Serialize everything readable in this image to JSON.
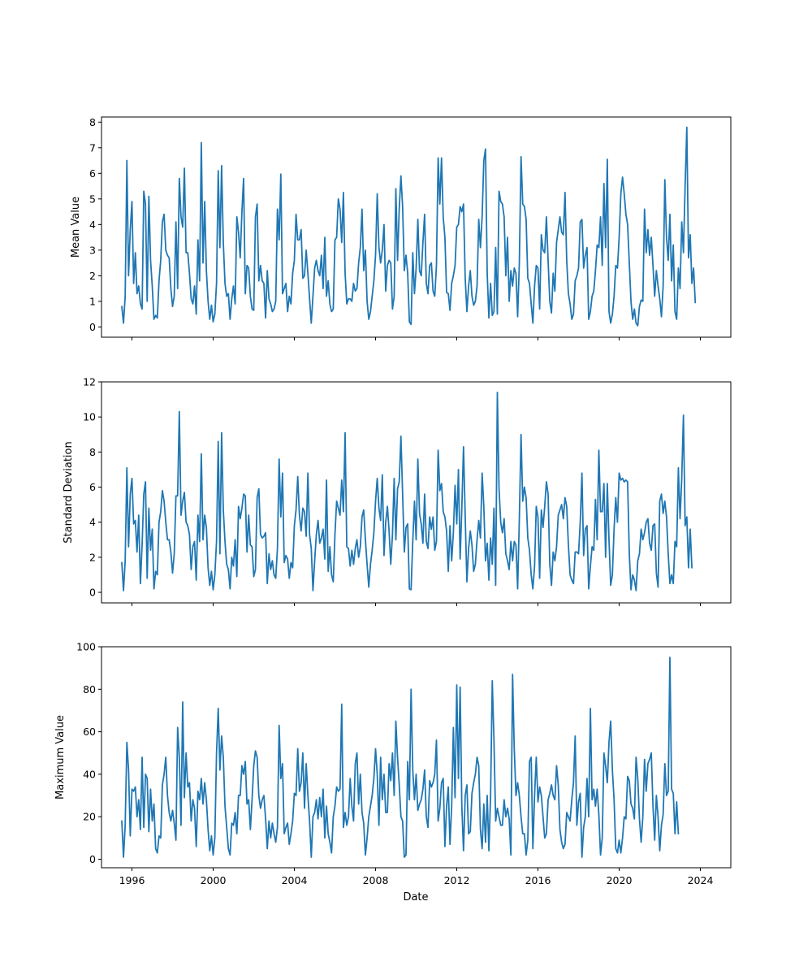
{
  "figure": {
    "xlabel": "Date",
    "line_color": "#1f77b4"
  },
  "chart_data": [
    {
      "type": "line",
      "ylabel": "Mean Value",
      "x_range": [
        "1995-07",
        "2024-06"
      ],
      "xlim": [
        "1994-07",
        "2025-07"
      ],
      "ylim": [
        -0.4,
        8.2
      ],
      "yticks": [
        0,
        1,
        2,
        3,
        4,
        5,
        6,
        7,
        8
      ],
      "xticks": [
        "1996",
        "2000",
        "2004",
        "2008",
        "2012",
        "2016",
        "2020",
        "2024"
      ],
      "x_tick_labels_visible": false,
      "grid": false,
      "series": [
        {
          "values": [
            0.8,
            0.15,
            1.2,
            6.5,
            2.0,
            3.8,
            4.9,
            1.7,
            2.9,
            1.3,
            1.6,
            0.9,
            0.7,
            5.3,
            4.8,
            1.0,
            5.1,
            2.6,
            1.6,
            0.3,
            0.45,
            0.35,
            1.8,
            2.6,
            4.1,
            4.4,
            3.0,
            2.8,
            2.7,
            1.5,
            0.8,
            1.2,
            4.1,
            1.5,
            5.8,
            4.3,
            3.9,
            6.2,
            2.9,
            2.9,
            2.1,
            1.1,
            0.9,
            1.6,
            0.5,
            3.4,
            1.8,
            7.2,
            2.5,
            4.9,
            2.2,
            1.0,
            0.3,
            0.85,
            0.2,
            0.5,
            1.7,
            6.1,
            3.1,
            6.3,
            3.3,
            1.7,
            1.2,
            1.3,
            0.3,
            1.1,
            1.6,
            0.9,
            4.3,
            3.7,
            2.7,
            4.5,
            5.8,
            1.3,
            2.4,
            2.3,
            1.2,
            0.7,
            0.65,
            4.3,
            4.8,
            1.8,
            2.4,
            1.8,
            1.7,
            0.35,
            2.2,
            1.1,
            0.9,
            0.6,
            0.7,
            1.0,
            4.6,
            3.4,
            5.97,
            1.3,
            1.5,
            1.7,
            0.6,
            1.2,
            0.9,
            2.1,
            2.6,
            4.4,
            3.4,
            3.4,
            3.8,
            1.9,
            2.0,
            3.0,
            2.1,
            1.1,
            0.15,
            1.2,
            2.3,
            2.6,
            2.2,
            2.0,
            2.8,
            1.5,
            3.5,
            1.2,
            1.8,
            0.9,
            0.6,
            0.7,
            3.4,
            3.5,
            5.0,
            4.6,
            3.3,
            5.25,
            2.1,
            0.9,
            1.1,
            1.1,
            1.0,
            1.7,
            1.4,
            1.5,
            2.5,
            3.1,
            4.6,
            2.2,
            3.0,
            1.0,
            0.3,
            0.6,
            1.2,
            1.8,
            2.8,
            5.2,
            3.1,
            2.5,
            3.0,
            4.0,
            1.4,
            2.4,
            2.6,
            2.5,
            0.7,
            1.2,
            5.4,
            2.6,
            4.6,
            5.9,
            4.7,
            2.2,
            2.8,
            2.1,
            0.2,
            0.1,
            2.9,
            1.3,
            2.3,
            4.2,
            2.2,
            2.0,
            3.3,
            4.4,
            1.7,
            1.3,
            2.4,
            2.5,
            1.4,
            1.2,
            2.4,
            6.6,
            4.8,
            6.6,
            4.3,
            3.5,
            1.35,
            1.3,
            0.65,
            1.7,
            2.0,
            2.4,
            3.9,
            4.0,
            4.7,
            4.5,
            4.8,
            1.9,
            0.6,
            1.6,
            2.2,
            1.2,
            0.85,
            1.0,
            1.6,
            4.2,
            3.1,
            4.3,
            6.5,
            6.95,
            2.1,
            0.35,
            1.7,
            0.45,
            0.6,
            3.1,
            0.5,
            5.3,
            4.9,
            4.8,
            4.3,
            2.0,
            3.5,
            1.0,
            2.2,
            1.6,
            2.3,
            2.1,
            0.4,
            2.5,
            6.65,
            4.8,
            4.7,
            4.2,
            1.9,
            1.7,
            0.9,
            0.15,
            1.6,
            2.4,
            2.3,
            0.7,
            3.6,
            3.0,
            2.9,
            4.3,
            2.6,
            1.0,
            0.55,
            2.1,
            1.4,
            3.3,
            3.8,
            4.3,
            3.7,
            3.6,
            5.25,
            2.6,
            1.3,
            0.9,
            0.3,
            0.5,
            1.8,
            2.0,
            2.3,
            4.1,
            4.2,
            2.3,
            2.8,
            3.1,
            0.3,
            0.6,
            1.2,
            1.4,
            2.2,
            3.2,
            3.1,
            4.3,
            2.4,
            5.6,
            3.1,
            6.55,
            0.6,
            0.15,
            0.5,
            1.2,
            2.4,
            2.3,
            3.5,
            5.2,
            5.85,
            5.2,
            4.4,
            4.0,
            2.5,
            1.0,
            0.3,
            0.7,
            0.15,
            0.05,
            0.8,
            1.05,
            1.0,
            4.6,
            2.9,
            3.8,
            2.8,
            3.5,
            2.4,
            1.2,
            2.2,
            1.6,
            1.1,
            0.4,
            1.6,
            5.75,
            3.5,
            2.6,
            4.4,
            1.8,
            3.2,
            0.6,
            0.3,
            2.3,
            1.5,
            4.1,
            2.9,
            5.5,
            7.8,
            2.7,
            3.6,
            1.7,
            2.3,
            0.95
          ]
        }
      ]
    },
    {
      "type": "line",
      "ylabel": "Standard Deviation",
      "x_range": [
        "1995-07",
        "2024-06"
      ],
      "xlim": [
        "1994-07",
        "2025-07"
      ],
      "ylim": [
        -0.6,
        12.0
      ],
      "yticks": [
        0,
        2,
        4,
        6,
        8,
        10,
        12
      ],
      "xticks": [
        "1996",
        "2000",
        "2004",
        "2008",
        "2012",
        "2016",
        "2020",
        "2024"
      ],
      "x_tick_labels_visible": false,
      "grid": false,
      "series": [
        {
          "values": [
            1.7,
            0.1,
            1.8,
            7.1,
            2.6,
            5.6,
            6.5,
            3.9,
            4.1,
            2.3,
            4.4,
            0.5,
            2.7,
            5.6,
            6.3,
            0.8,
            4.8,
            2.4,
            3.6,
            0.2,
            1.2,
            1.0,
            4.0,
            4.6,
            5.8,
            5.2,
            4.0,
            3.0,
            3.0,
            2.3,
            1.1,
            2.2,
            5.5,
            5.5,
            10.3,
            4.4,
            5.2,
            5.7,
            4.0,
            3.8,
            3.3,
            1.3,
            2.6,
            2.9,
            0.7,
            4.4,
            2.9,
            7.9,
            3.0,
            4.4,
            3.7,
            1.4,
            0.4,
            1.2,
            0.15,
            1.0,
            2.9,
            8.6,
            2.2,
            9.1,
            4.7,
            2.9,
            1.6,
            1.3,
            0.2,
            2.0,
            1.5,
            3.0,
            0.9,
            4.9,
            4.2,
            4.8,
            5.6,
            5.5,
            2.3,
            4.4,
            2.7,
            2.6,
            0.9,
            1.3,
            5.4,
            5.9,
            3.3,
            3.1,
            3.2,
            3.4,
            0.5,
            2.2,
            1.3,
            1.8,
            1.0,
            0.8,
            2.5,
            7.6,
            4.3,
            6.8,
            1.7,
            2.1,
            1.9,
            0.8,
            1.7,
            1.4,
            3.8,
            4.7,
            6.6,
            4.4,
            3.5,
            4.8,
            4.6,
            3.2,
            6.8,
            3.3,
            2.5,
            0.1,
            1.8,
            3.3,
            4.1,
            2.8,
            3.1,
            3.6,
            1.9,
            6.4,
            1.2,
            2.6,
            1.0,
            0.6,
            3.3,
            5.2,
            4.8,
            4.4,
            6.4,
            4.6,
            9.1,
            2.6,
            2.5,
            1.5,
            2.4,
            1.6,
            2.5,
            3.0,
            2.0,
            2.6,
            4.3,
            4.7,
            3.0,
            1.6,
            0.3,
            1.6,
            2.4,
            3.4,
            5.2,
            6.5,
            4.8,
            4.1,
            6.7,
            2.1,
            4.0,
            4.9,
            3.5,
            1.6,
            3.3,
            6.5,
            3.0,
            5.9,
            6.3,
            8.9,
            5.6,
            2.3,
            3.7,
            3.9,
            0.2,
            0.15,
            2.9,
            5.2,
            3.0,
            7.6,
            4.5,
            3.9,
            2.8,
            5.6,
            2.9,
            2.5,
            4.3,
            3.6,
            4.3,
            2.4,
            2.9,
            8.1,
            5.8,
            6.2,
            4.6,
            4.3,
            3.5,
            1.2,
            3.8,
            1.8,
            3.4,
            6.1,
            3.9,
            7.0,
            1.9,
            4.8,
            8.3,
            4.3,
            0.6,
            2.5,
            3.5,
            2.7,
            1.2,
            1.6,
            3.0,
            4.1,
            3.1,
            6.8,
            4.9,
            1.8,
            2.8,
            0.7,
            3.1,
            1.6,
            4.8,
            0.4,
            11.4,
            5.9,
            4.0,
            3.4,
            4.2,
            2.2,
            1.8,
            1.3,
            2.9,
            1.8,
            2.9,
            2.7,
            0.2,
            4.2,
            9.0,
            5.2,
            6.0,
            5.4,
            3.1,
            2.4,
            1.0,
            0.2,
            1.5,
            4.9,
            4.3,
            0.8,
            4.7,
            3.7,
            4.9,
            6.3,
            5.6,
            1.6,
            0.4,
            2.3,
            1.8,
            2.6,
            4.4,
            4.7,
            5.0,
            4.2,
            5.4,
            4.9,
            2.7,
            1.0,
            0.7,
            0.5,
            2.3,
            2.3,
            2.2,
            4.0,
            6.8,
            2.1,
            3.6,
            3.8,
            0.2,
            1.5,
            2.6,
            2.4,
            5.3,
            3.0,
            8.1,
            4.6,
            4.6,
            6.2,
            2.0,
            6.2,
            3.0,
            0.4,
            1.0,
            3.6,
            5.4,
            4.0,
            6.8,
            6.4,
            6.5,
            6.3,
            6.4,
            6.3,
            2.2,
            0.15,
            1.0,
            0.7,
            0.1,
            1.8,
            2.2,
            3.6,
            3.0,
            3.4,
            4.0,
            4.2,
            2.8,
            2.4,
            3.8,
            3.9,
            1.1,
            0.3,
            5.2,
            5.6,
            4.5,
            5.2,
            4.3,
            2.2,
            0.5,
            1.0,
            0.5,
            2.9,
            2.6,
            7.1,
            4.2,
            6.5,
            10.1,
            3.8,
            4.3,
            1.4,
            3.6,
            1.4
          ]
        }
      ]
    },
    {
      "type": "line",
      "ylabel": "Maximum Value",
      "x_range": [
        "1995-07",
        "2024-06"
      ],
      "xlim": [
        "1994-07",
        "2025-07"
      ],
      "ylim": [
        -4,
        100
      ],
      "yticks": [
        0,
        20,
        40,
        60,
        80,
        100
      ],
      "xticks": [
        "1996",
        "2000",
        "2004",
        "2008",
        "2012",
        "2016",
        "2020",
        "2024"
      ],
      "x_tick_labels_visible": true,
      "grid": false,
      "series": [
        {
          "values": [
            18,
            1,
            16,
            55,
            42,
            11,
            33,
            32,
            34,
            20,
            28,
            14,
            48,
            15,
            40,
            38,
            13,
            33,
            18,
            26,
            5,
            3,
            11,
            10,
            35,
            40,
            48,
            30,
            22,
            18,
            23,
            17,
            9,
            62,
            48,
            16,
            74,
            29,
            50,
            34,
            36,
            18,
            28,
            24,
            6,
            32,
            28,
            38,
            26,
            36,
            28,
            14,
            4,
            11,
            2,
            10,
            50,
            71,
            42,
            58,
            48,
            25,
            15,
            5,
            2,
            17,
            16,
            22,
            12,
            30,
            30,
            44,
            40,
            46,
            26,
            28,
            14,
            28,
            44,
            51,
            48,
            30,
            24,
            28,
            30,
            19,
            5,
            18,
            10,
            17,
            12,
            8,
            15,
            63,
            38,
            45,
            12,
            15,
            17,
            7,
            12,
            18,
            31,
            30,
            52,
            32,
            36,
            50,
            24,
            45,
            30,
            18,
            1,
            20,
            22,
            28,
            19,
            29,
            20,
            33,
            10,
            25,
            12,
            8,
            3,
            20,
            25,
            34,
            32,
            33,
            73,
            15,
            22,
            16,
            20,
            38,
            25,
            18,
            45,
            50,
            26,
            40,
            22,
            17,
            2,
            10,
            20,
            25,
            30,
            38,
            52,
            40,
            16,
            48,
            28,
            40,
            22,
            22,
            45,
            37,
            50,
            30,
            65,
            48,
            35,
            20,
            18,
            1,
            2,
            46,
            28,
            80,
            42,
            28,
            40,
            23,
            26,
            28,
            33,
            42,
            20,
            15,
            37,
            34,
            36,
            40,
            56,
            18,
            24,
            36,
            38,
            6,
            25,
            34,
            7,
            25,
            62,
            29,
            82,
            38,
            81,
            25,
            4,
            30,
            35,
            12,
            13,
            31,
            36,
            40,
            48,
            44,
            14,
            5,
            26,
            8,
            30,
            4,
            30,
            84,
            56,
            18,
            24,
            20,
            16,
            16,
            28,
            20,
            24,
            19,
            2,
            87,
            52,
            30,
            36,
            30,
            20,
            12,
            12,
            2,
            9,
            46,
            48,
            5,
            30,
            48,
            27,
            34,
            30,
            20,
            10,
            12,
            28,
            31,
            35,
            30,
            28,
            44,
            35,
            14,
            8,
            5,
            7,
            22,
            20,
            18,
            28,
            36,
            58,
            16,
            27,
            31,
            1,
            15,
            20,
            38,
            20,
            71,
            28,
            33,
            25,
            33,
            21,
            2,
            10,
            50,
            44,
            36,
            55,
            65,
            42,
            28,
            5,
            3,
            9,
            3,
            10,
            20,
            19,
            39,
            37,
            26,
            24,
            19,
            48,
            38,
            19,
            8,
            20,
            47,
            32,
            45,
            47,
            50,
            25,
            9,
            30,
            20,
            4,
            16,
            21,
            45,
            30,
            32,
            95,
            33,
            31,
            12,
            27,
            12
          ]
        }
      ]
    }
  ]
}
